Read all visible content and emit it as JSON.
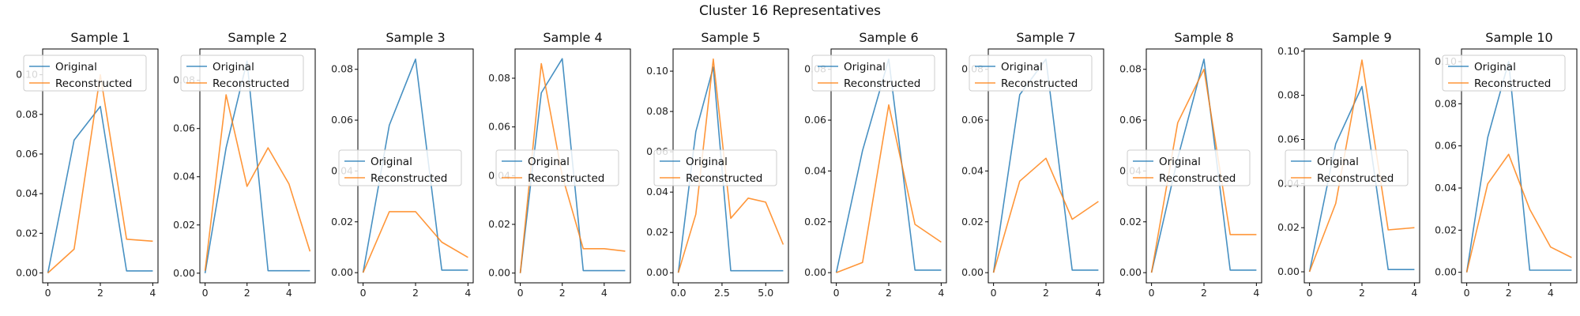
{
  "figure_title": "Cluster 16 Representatives",
  "colors": {
    "original": "#1f77b4",
    "reconstructed": "#ff7f0e",
    "axis": "#000000"
  },
  "chart_data": [
    {
      "type": "line",
      "title": "Sample 1",
      "xlim": [
        -0.2,
        4.2
      ],
      "ylim": [
        -0.005,
        0.113
      ],
      "xticks": [
        "0",
        "2",
        "4"
      ],
      "xtick_values": [
        0,
        2,
        4
      ],
      "yticks": [
        "0.00",
        "0.02",
        "0.04",
        "0.06",
        "0.08",
        "0.10"
      ],
      "ytick_values": [
        0,
        0.02,
        0.04,
        0.06,
        0.08,
        0.1
      ],
      "legend": "upper-left",
      "series": [
        {
          "name": "Original",
          "x": [
            0,
            1,
            2,
            3,
            4
          ],
          "y": [
            0.0,
            0.067,
            0.084,
            0.001,
            0.001
          ]
        },
        {
          "name": "Reconstructed",
          "x": [
            0,
            1,
            2,
            3,
            4
          ],
          "y": [
            0.0,
            0.012,
            0.1,
            0.017,
            0.016
          ]
        }
      ]
    },
    {
      "type": "line",
      "title": "Sample 2",
      "xlim": [
        -0.25,
        5.25
      ],
      "ylim": [
        -0.004,
        0.093
      ],
      "xticks": [
        "0",
        "2",
        "4"
      ],
      "xtick_values": [
        0,
        2,
        4
      ],
      "yticks": [
        "0.00",
        "0.02",
        "0.04",
        "0.06",
        "0.08"
      ],
      "ytick_values": [
        0,
        0.02,
        0.04,
        0.06,
        0.08
      ],
      "legend": "upper-left",
      "series": [
        {
          "name": "Original",
          "x": [
            0,
            1,
            2,
            3,
            4,
            5
          ],
          "y": [
            0.0,
            0.052,
            0.088,
            0.001,
            0.001,
            0.001
          ]
        },
        {
          "name": "Reconstructed",
          "x": [
            0,
            1,
            2,
            3,
            4,
            5
          ],
          "y": [
            0.001,
            0.074,
            0.036,
            0.052,
            0.037,
            0.009
          ]
        }
      ]
    },
    {
      "type": "line",
      "title": "Sample 3",
      "xlim": [
        -0.2,
        4.2
      ],
      "ylim": [
        -0.004,
        0.088
      ],
      "xticks": [
        "0",
        "2",
        "4"
      ],
      "xtick_values": [
        0,
        2,
        4
      ],
      "yticks": [
        "0.00",
        "0.02",
        "0.04",
        "0.06",
        "0.08"
      ],
      "ytick_values": [
        0,
        0.02,
        0.04,
        0.06,
        0.08
      ],
      "legend": "center-left",
      "series": [
        {
          "name": "Original",
          "x": [
            0,
            1,
            2,
            3,
            4
          ],
          "y": [
            0.0,
            0.058,
            0.084,
            0.001,
            0.001
          ]
        },
        {
          "name": "Reconstructed",
          "x": [
            0,
            1,
            2,
            3,
            4
          ],
          "y": [
            0.0,
            0.024,
            0.024,
            0.012,
            0.006
          ]
        }
      ]
    },
    {
      "type": "line",
      "title": "Sample 4",
      "xlim": [
        -0.25,
        5.25
      ],
      "ylim": [
        -0.004,
        0.092
      ],
      "xticks": [
        "0",
        "2",
        "4"
      ],
      "xtick_values": [
        0,
        2,
        4
      ],
      "yticks": [
        "0.00",
        "0.02",
        "0.04",
        "0.06",
        "0.08"
      ],
      "ytick_values": [
        0,
        0.02,
        0.04,
        0.06,
        0.08
      ],
      "legend": "center-left",
      "series": [
        {
          "name": "Original",
          "x": [
            0,
            1,
            2,
            3,
            4,
            5
          ],
          "y": [
            0.0,
            0.074,
            0.088,
            0.001,
            0.001,
            0.001
          ]
        },
        {
          "name": "Reconstructed",
          "x": [
            0,
            1,
            2,
            3,
            4,
            5
          ],
          "y": [
            0.0,
            0.086,
            0.04,
            0.01,
            0.01,
            0.009
          ]
        }
      ]
    },
    {
      "type": "line",
      "title": "Sample 5",
      "xlim": [
        -0.3,
        6.3
      ],
      "ylim": [
        -0.005,
        0.111
      ],
      "xticks": [
        "0.0",
        "2.5",
        "5.0"
      ],
      "xtick_values": [
        0,
        2.5,
        5
      ],
      "yticks": [
        "0.00",
        "0.02",
        "0.04",
        "0.06",
        "0.08",
        "0.10"
      ],
      "ytick_values": [
        0,
        0.02,
        0.04,
        0.06,
        0.08,
        0.1
      ],
      "legend": "center-left",
      "series": [
        {
          "name": "Original",
          "x": [
            0,
            1,
            2,
            3,
            4,
            5,
            6
          ],
          "y": [
            0.0,
            0.07,
            0.102,
            0.001,
            0.001,
            0.001,
            0.001
          ]
        },
        {
          "name": "Reconstructed",
          "x": [
            0,
            1,
            2,
            3,
            4,
            5,
            6
          ],
          "y": [
            0.0,
            0.029,
            0.106,
            0.027,
            0.037,
            0.035,
            0.014
          ]
        }
      ]
    },
    {
      "type": "line",
      "title": "Sample 6",
      "xlim": [
        -0.2,
        4.2
      ],
      "ylim": [
        -0.004,
        0.088
      ],
      "xticks": [
        "0",
        "2",
        "4"
      ],
      "xtick_values": [
        0,
        2,
        4
      ],
      "yticks": [
        "0.00",
        "0.02",
        "0.04",
        "0.06",
        "0.08"
      ],
      "ytick_values": [
        0,
        0.02,
        0.04,
        0.06,
        0.08
      ],
      "legend": "upper-left",
      "series": [
        {
          "name": "Original",
          "x": [
            0,
            1,
            2,
            3,
            4
          ],
          "y": [
            0.0,
            0.048,
            0.084,
            0.001,
            0.001
          ]
        },
        {
          "name": "Reconstructed",
          "x": [
            0,
            1,
            2,
            3,
            4
          ],
          "y": [
            0.0,
            0.004,
            0.066,
            0.019,
            0.012
          ]
        }
      ]
    },
    {
      "type": "line",
      "title": "Sample 7",
      "xlim": [
        -0.2,
        4.2
      ],
      "ylim": [
        -0.004,
        0.088
      ],
      "xticks": [
        "0",
        "2",
        "4"
      ],
      "xtick_values": [
        0,
        2,
        4
      ],
      "yticks": [
        "0.00",
        "0.02",
        "0.04",
        "0.06",
        "0.08"
      ],
      "ytick_values": [
        0,
        0.02,
        0.04,
        0.06,
        0.08
      ],
      "legend": "upper-left",
      "series": [
        {
          "name": "Original",
          "x": [
            0,
            1,
            2,
            3,
            4
          ],
          "y": [
            0.0,
            0.07,
            0.084,
            0.001,
            0.001
          ]
        },
        {
          "name": "Reconstructed",
          "x": [
            0,
            1,
            2,
            3,
            4
          ],
          "y": [
            0.0,
            0.036,
            0.045,
            0.021,
            0.028
          ]
        }
      ]
    },
    {
      "type": "line",
      "title": "Sample 8",
      "xlim": [
        -0.2,
        4.2
      ],
      "ylim": [
        -0.004,
        0.088
      ],
      "xticks": [
        "0",
        "2",
        "4"
      ],
      "xtick_values": [
        0,
        2,
        4
      ],
      "yticks": [
        "0.00",
        "0.02",
        "0.04",
        "0.06",
        "0.08"
      ],
      "ytick_values": [
        0,
        0.02,
        0.04,
        0.06,
        0.08
      ],
      "legend": "center-left",
      "series": [
        {
          "name": "Original",
          "x": [
            0,
            1,
            2,
            3,
            4
          ],
          "y": [
            0.0,
            0.045,
            0.084,
            0.001,
            0.001
          ]
        },
        {
          "name": "Reconstructed",
          "x": [
            0,
            1,
            2,
            3,
            4
          ],
          "y": [
            0.0,
            0.059,
            0.08,
            0.015,
            0.015
          ]
        }
      ]
    },
    {
      "type": "line",
      "title": "Sample 9",
      "xlim": [
        -0.2,
        4.2
      ],
      "ylim": [
        -0.005,
        0.101
      ],
      "xticks": [
        "0",
        "2",
        "4"
      ],
      "xtick_values": [
        0,
        2,
        4
      ],
      "yticks": [
        "0.00",
        "0.02",
        "0.04",
        "0.06",
        "0.08",
        "0.10"
      ],
      "ytick_values": [
        0,
        0.02,
        0.04,
        0.06,
        0.08,
        0.1
      ],
      "legend": "center-left",
      "series": [
        {
          "name": "Original",
          "x": [
            0,
            1,
            2,
            3,
            4
          ],
          "y": [
            0.0,
            0.058,
            0.084,
            0.001,
            0.001
          ]
        },
        {
          "name": "Reconstructed",
          "x": [
            0,
            1,
            2,
            3,
            4
          ],
          "y": [
            0.0,
            0.031,
            0.096,
            0.019,
            0.02
          ]
        }
      ]
    },
    {
      "type": "line",
      "title": "Sample 10",
      "xlim": [
        -0.25,
        5.25
      ],
      "ylim": [
        -0.005,
        0.106
      ],
      "xticks": [
        "0",
        "2",
        "4"
      ],
      "xtick_values": [
        0,
        2,
        4
      ],
      "yticks": [
        "0.00",
        "0.02",
        "0.04",
        "0.06",
        "0.08",
        "0.10"
      ],
      "ytick_values": [
        0,
        0.02,
        0.04,
        0.06,
        0.08,
        0.1
      ],
      "legend": "upper-left",
      "series": [
        {
          "name": "Original",
          "x": [
            0,
            1,
            2,
            3,
            4,
            5
          ],
          "y": [
            0.0,
            0.064,
            0.1,
            0.001,
            0.001,
            0.001
          ]
        },
        {
          "name": "Reconstructed",
          "x": [
            0,
            1,
            2,
            3,
            4,
            5
          ],
          "y": [
            0.0,
            0.042,
            0.056,
            0.03,
            0.012,
            0.007
          ]
        }
      ]
    }
  ]
}
